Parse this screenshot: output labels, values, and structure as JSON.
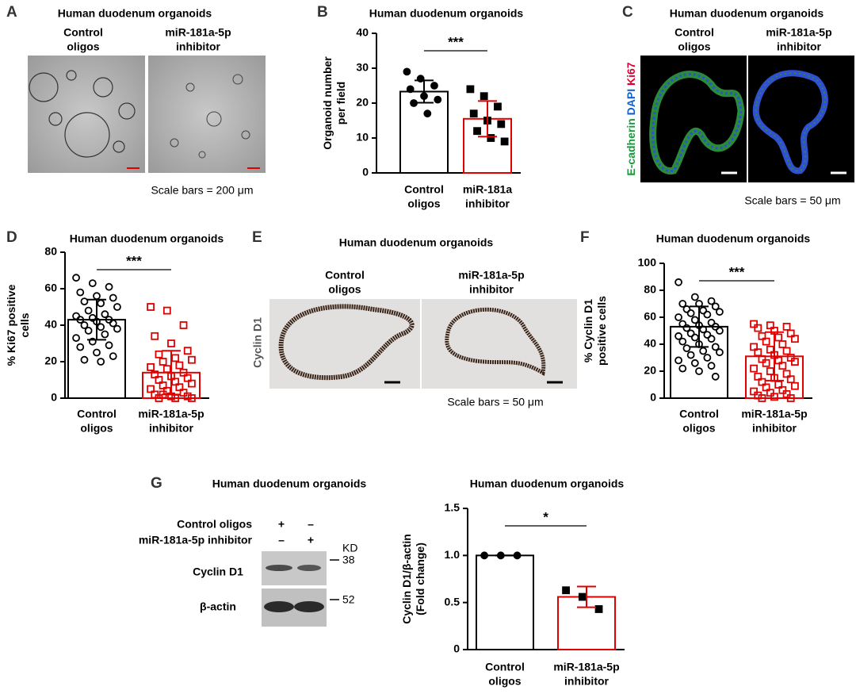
{
  "panels": {
    "A": {
      "letter": "A",
      "title": "Human duodenum organoids",
      "left": [
        "Control",
        "oligos"
      ],
      "right": [
        "miR-181a-5p",
        "inhibitor"
      ],
      "scale": "Scale bars = 200 μm"
    },
    "B": {
      "letter": "B"
    },
    "C": {
      "letter": "C",
      "title": "Human duodenum organoids",
      "left": [
        "Control",
        "oligos"
      ],
      "right": [
        "miR-181a-5p",
        "inhibitor"
      ],
      "stain": [
        "E-cadherin",
        "DAPI",
        "Ki67"
      ],
      "scale": "Scale bars = 50 μm"
    },
    "D": {
      "letter": "D"
    },
    "E": {
      "letter": "E",
      "title": "Human duodenum organoids",
      "left": [
        "Control",
        "oligos"
      ],
      "right": [
        "miR-181a-5p",
        "inhibitor"
      ],
      "stain": "Cyclin D1",
      "scale": "Scale bars = 50 μm"
    },
    "F": {
      "letter": "F"
    },
    "G": {
      "letter": "G",
      "title": "Human duodenum organoids",
      "rows": [
        "Control oligos",
        "miR-181a-5p inhibitor"
      ],
      "signs": [
        [
          "+",
          "–"
        ],
        [
          "–",
          "+"
        ]
      ],
      "bands": [
        "Cyclin D1",
        "β-actin"
      ],
      "kd": "KD",
      "markers": [
        "38",
        "52"
      ]
    }
  },
  "chart_data": [
    {
      "type": "bar",
      "title": "Human duodenum organoids",
      "ylabel": [
        "Organoid number",
        "per field"
      ],
      "categories": [
        [
          "Control",
          "oligos"
        ],
        [
          "miR-181a",
          "inhibitor"
        ]
      ],
      "values": [
        23.3,
        15.5
      ],
      "errors": [
        3.2,
        5.1
      ],
      "colors": [
        "#000000",
        "#e00000"
      ],
      "points": [
        [
          29,
          27,
          25,
          24,
          22,
          21,
          20,
          17
        ],
        [
          24,
          22,
          19,
          17,
          15,
          14,
          12,
          10,
          9
        ]
      ],
      "markers": [
        "circle",
        "square"
      ],
      "marker_fill": [
        "#000000",
        "#000000"
      ],
      "significance": "***",
      "ylim": [
        0,
        40
      ],
      "yticks": [
        0,
        10,
        20,
        30,
        40
      ]
    },
    {
      "type": "bar",
      "title": "Human duodenum organoids",
      "ylabel": [
        "% Ki67 positive",
        "cells"
      ],
      "categories": [
        [
          "Control",
          "oligos"
        ],
        [
          "miR-181a-5p",
          "inhibitor"
        ]
      ],
      "values": [
        43,
        14
      ],
      "errors": [
        11,
        12
      ],
      "colors": [
        "#000000",
        "#e00000"
      ],
      "points": [
        [
          66,
          63,
          61,
          58,
          56,
          55,
          53,
          52,
          50,
          48,
          46,
          45,
          44,
          43,
          43,
          42,
          41,
          40,
          39,
          38,
          37,
          35,
          33,
          31,
          29,
          28,
          25,
          23,
          21,
          20
        ],
        [
          50,
          48,
          40,
          34,
          30,
          26,
          24,
          22,
          21,
          20,
          18,
          17,
          16,
          14,
          13,
          12,
          11,
          10,
          9,
          8,
          7,
          6,
          5,
          4,
          3,
          2,
          1,
          1,
          0,
          0,
          0,
          2
        ]
      ],
      "markers": [
        "circle",
        "square"
      ],
      "marker_fill": [
        "none",
        "none"
      ],
      "significance": "***",
      "ylim": [
        0,
        80
      ],
      "yticks": [
        0,
        20,
        40,
        60,
        80
      ]
    },
    {
      "type": "bar",
      "title": "Human duodenum organoids",
      "ylabel": [
        "% Cyclin D1",
        "positive cells"
      ],
      "categories": [
        [
          "Control",
          "oligos"
        ],
        [
          "miR-181a-5p",
          "inhibitor"
        ]
      ],
      "values": [
        53,
        31
      ],
      "errors": [
        15,
        18
      ],
      "colors": [
        "#000000",
        "#e00000"
      ],
      "points": [
        [
          86,
          75,
          72,
          70,
          70,
          68,
          66,
          65,
          64,
          63,
          62,
          60,
          58,
          56,
          55,
          54,
          53,
          52,
          51,
          50,
          48,
          47,
          46,
          45,
          44,
          42,
          40,
          38,
          37,
          35,
          34,
          32,
          30,
          28,
          26,
          24,
          22,
          20,
          16
        ],
        [
          55,
          54,
          53,
          52,
          50,
          48,
          46,
          45,
          44,
          42,
          40,
          38,
          36,
          35,
          34,
          32,
          30,
          29,
          28,
          27,
          26,
          24,
          22,
          20,
          18,
          16,
          15,
          14,
          12,
          10,
          9,
          8,
          6,
          5,
          4,
          3,
          2,
          1,
          0,
          0
        ]
      ],
      "markers": [
        "circle",
        "square"
      ],
      "marker_fill": [
        "none",
        "none"
      ],
      "significance": "***",
      "ylim": [
        0,
        100
      ],
      "yticks": [
        0,
        20,
        40,
        60,
        80,
        100
      ]
    },
    {
      "type": "bar",
      "title": "Human duodenum organoids",
      "ylabel": [
        "Cyclin D1/β-actin",
        "(Fold change)"
      ],
      "categories": [
        [
          "Control",
          "oligos"
        ],
        [
          "miR-181a-5p",
          "inhibitor"
        ]
      ],
      "values": [
        1.0,
        0.56
      ],
      "errors": [
        0,
        0.11
      ],
      "colors": [
        "#000000",
        "#e00000"
      ],
      "points": [
        [
          1,
          1,
          1
        ],
        [
          0.63,
          0.56,
          0.43
        ]
      ],
      "markers": [
        "circle",
        "square"
      ],
      "marker_fill": [
        "#000000",
        "#000000"
      ],
      "significance": "*",
      "ylim": [
        0,
        1.5
      ],
      "yticks": [
        0,
        0.5,
        {
          "value": 1,
          "label": "1.0"
        },
        1.5
      ]
    }
  ]
}
